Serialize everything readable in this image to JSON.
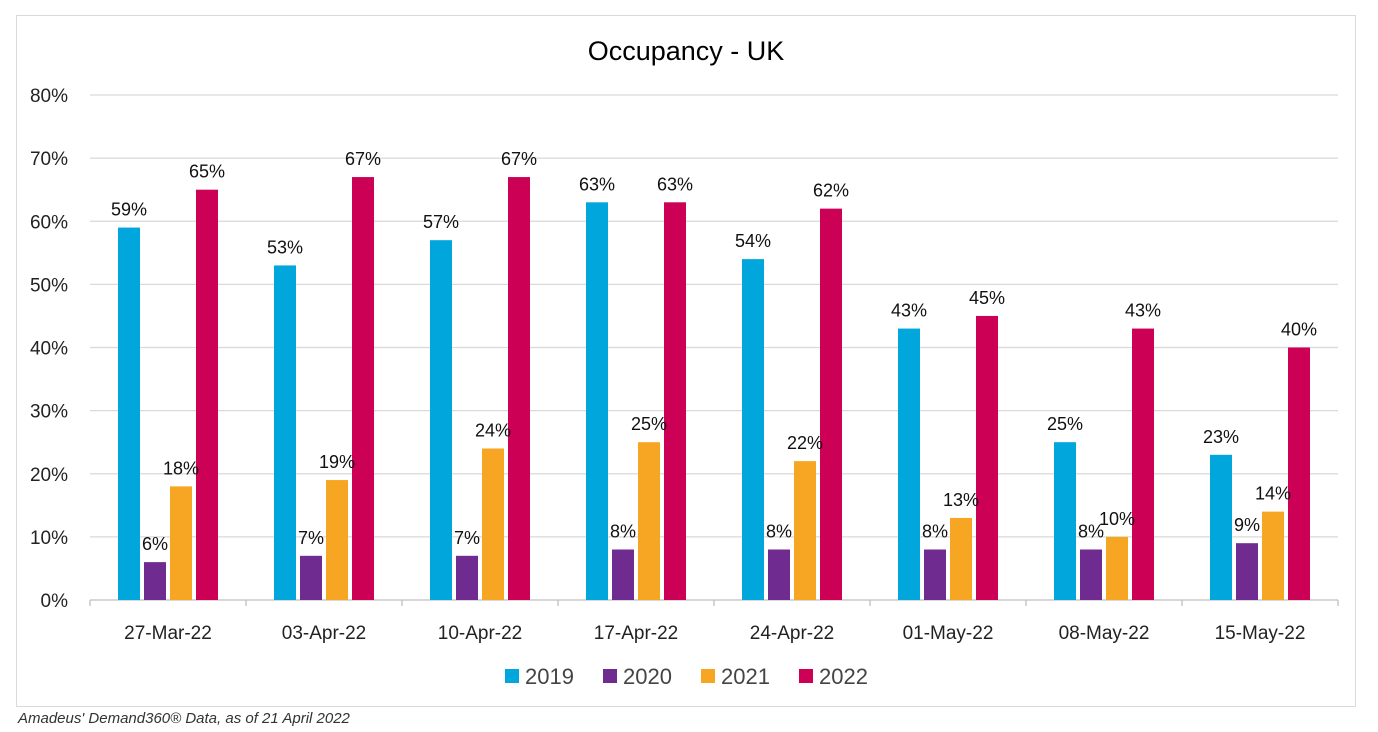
{
  "chart_data": {
    "type": "bar",
    "title": "Occupancy - UK",
    "xlabel": "",
    "ylabel": "",
    "ylim": [
      0,
      80
    ],
    "yticks": [
      "0%",
      "10%",
      "20%",
      "30%",
      "40%",
      "50%",
      "60%",
      "70%",
      "80%"
    ],
    "grid": true,
    "legend_position": "bottom",
    "categories": [
      "27-Mar-22",
      "03-Apr-22",
      "10-Apr-22",
      "17-Apr-22",
      "24-Apr-22",
      "01-May-22",
      "08-May-22",
      "15-May-22"
    ],
    "series": [
      {
        "name": "2019",
        "color": "#00a6dc",
        "values": [
          59,
          53,
          57,
          63,
          54,
          43,
          25,
          23
        ]
      },
      {
        "name": "2020",
        "color": "#702b91",
        "values": [
          6,
          7,
          7,
          8,
          8,
          8,
          8,
          9
        ]
      },
      {
        "name": "2021",
        "color": "#f6a623",
        "values": [
          18,
          19,
          24,
          25,
          22,
          13,
          10,
          14
        ]
      },
      {
        "name": "2022",
        "color": "#cc0055",
        "values": [
          65,
          67,
          67,
          63,
          62,
          45,
          43,
          40
        ]
      }
    ]
  },
  "source_note": "Amadeus' Demand360® Data, as of 21 April 2022"
}
